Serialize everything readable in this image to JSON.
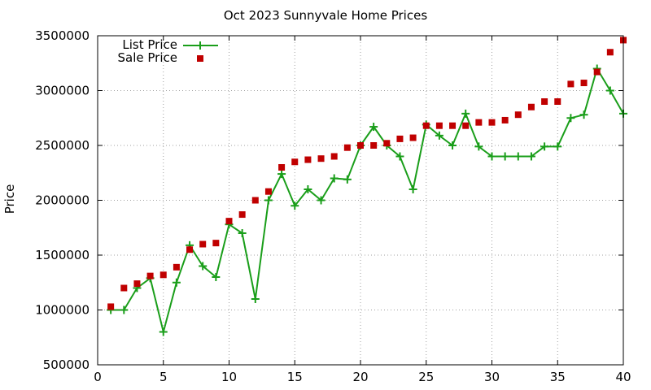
{
  "chart_data": {
    "type": "line",
    "title": "Oct 2023 Sunnyvale Home Prices",
    "xlabel": "",
    "ylabel": "Price",
    "xlim": [
      0,
      40
    ],
    "ylim": [
      500000,
      3500000
    ],
    "x_ticks": [
      0,
      5,
      10,
      15,
      20,
      25,
      30,
      35,
      40
    ],
    "y_ticks": [
      500000,
      1000000,
      1500000,
      2000000,
      2500000,
      3000000,
      3500000
    ],
    "grid": true,
    "legend_position": "top-left",
    "x": [
      1,
      2,
      3,
      4,
      5,
      6,
      7,
      8,
      9,
      10,
      11,
      12,
      13,
      14,
      15,
      16,
      17,
      18,
      19,
      20,
      21,
      22,
      23,
      24,
      25,
      26,
      27,
      28,
      29,
      30,
      31,
      32,
      33,
      34,
      35,
      36,
      37,
      38,
      39,
      40
    ],
    "series": [
      {
        "name": "List Price",
        "style": "linespoints",
        "marker": "plus",
        "color": "#1a9e1a",
        "values": [
          1000000,
          1000000,
          1200000,
          1290000,
          800000,
          1250000,
          1590000,
          1400000,
          1300000,
          1780000,
          1700000,
          1100000,
          2000000,
          2240000,
          1950000,
          2100000,
          2000000,
          2200000,
          2190000,
          2500000,
          2670000,
          2500000,
          2400000,
          2100000,
          2690000,
          2590000,
          2500000,
          2790000,
          2490000,
          2400000,
          2400000,
          2400000,
          2400000,
          2490000,
          2490000,
          2750000,
          2780000,
          3200000,
          3000000,
          2790000
        ]
      },
      {
        "name": "Sale Price",
        "style": "points",
        "marker": "square",
        "color": "#c00000",
        "values": [
          1030000,
          1200000,
          1240000,
          1310000,
          1320000,
          1390000,
          1550000,
          1600000,
          1610000,
          1810000,
          1870000,
          2000000,
          2080000,
          2300000,
          2350000,
          2370000,
          2380000,
          2400000,
          2480000,
          2500000,
          2500000,
          2520000,
          2560000,
          2570000,
          2680000,
          2680000,
          2680000,
          2680000,
          2710000,
          2710000,
          2730000,
          2780000,
          2850000,
          2900000,
          2900000,
          3060000,
          3070000,
          3170000,
          3350000,
          3460000
        ]
      }
    ]
  }
}
